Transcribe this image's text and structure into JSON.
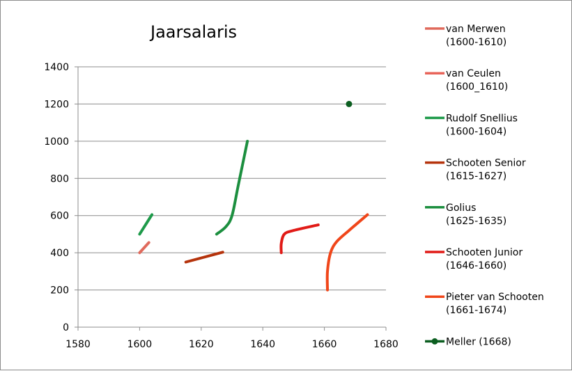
{
  "chart_data": {
    "type": "line",
    "title": "Jaarsalaris",
    "xlabel": "",
    "ylabel": "",
    "xlim": [
      1580,
      1680
    ],
    "ylim": [
      0,
      1400
    ],
    "x_ticks": [
      1580,
      1600,
      1620,
      1640,
      1660,
      1680
    ],
    "y_ticks": [
      0,
      200,
      400,
      600,
      800,
      1000,
      1200,
      1400
    ],
    "x_tick_labels": [
      "1580",
      "1600",
      "1620",
      "1640",
      "1660",
      "1680"
    ],
    "y_tick_labels": [
      "0",
      "200",
      "400",
      "600",
      "800",
      "1000",
      "1200",
      "1400"
    ],
    "grid": "horizontal",
    "legend_position": "right",
    "series": [
      {
        "name": "van Merwen (1600-1610)",
        "legend_lines": [
          "van Merwen",
          "(1600-1610)"
        ],
        "color": "#e06a5c",
        "marker": "none",
        "points": [
          [
            1600,
            400
          ],
          [
            1603,
            455
          ]
        ]
      },
      {
        "name": "van Ceulen (1600_1610)",
        "legend_lines": [
          "van Ceulen",
          "(1600_1610)"
        ],
        "color": "#e8645a",
        "marker": "none",
        "points": []
      },
      {
        "name": "Rudolf Snellius (1600-1604)",
        "legend_lines": [
          "Rudolf Snellius",
          "(1600-1604)"
        ],
        "color": "#1e9a4a",
        "marker": "none",
        "points": [
          [
            1600,
            500
          ],
          [
            1604,
            605
          ]
        ]
      },
      {
        "name": "Schooten Senior (1615-1627)",
        "legend_lines": [
          "Schooten Senior",
          "(1615-1627)"
        ],
        "color": "#b5330c",
        "marker": "none",
        "points": [
          [
            1615,
            350
          ],
          [
            1627,
            403
          ]
        ]
      },
      {
        "name": "Golius (1625-1635)",
        "legend_lines": [
          "Golius",
          "(1625-1635)"
        ],
        "color": "#1c8f3f",
        "marker": "none",
        "points": [
          [
            1625,
            500
          ],
          [
            1628,
            540
          ],
          [
            1630,
            600
          ],
          [
            1632,
            760
          ],
          [
            1635,
            1000
          ]
        ]
      },
      {
        "name": "Schooten Junior (1646-1660)",
        "legend_lines": [
          "Schooten Junior",
          "(1646-1660)"
        ],
        "color": "#e11b17",
        "marker": "none",
        "points": [
          [
            1646,
            400
          ],
          [
            1646,
            450
          ],
          [
            1647,
            500
          ],
          [
            1650,
            520
          ],
          [
            1658,
            550
          ]
        ]
      },
      {
        "name": "Pieter van Schooten (1661-1674)",
        "legend_lines": [
          "Pieter van Schooten",
          "(1661-1674)"
        ],
        "color": "#f0461a",
        "marker": "none",
        "points": [
          [
            1661,
            200
          ],
          [
            1661,
            300
          ],
          [
            1662,
            400
          ],
          [
            1664,
            460
          ],
          [
            1668,
            520
          ],
          [
            1674,
            605
          ]
        ]
      },
      {
        "name": "Meller (1668)",
        "legend_lines": [
          "Meller (1668)"
        ],
        "color": "#0b5e20",
        "marker": "circle",
        "points": [
          [
            1668,
            1200
          ]
        ]
      }
    ]
  }
}
